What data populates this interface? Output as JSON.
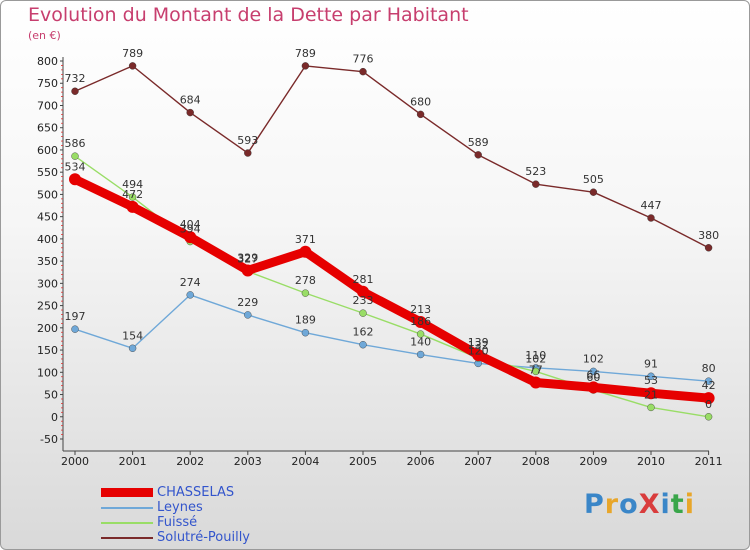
{
  "title": "Evolution du Montant de la Dette par Habitant",
  "unit": "(en €)",
  "logo": {
    "text": "ProXiti",
    "colors": [
      "#3a86c8",
      "#e8a62a",
      "#3a86c8",
      "#d93c3c",
      "#3a86c8",
      "#3aa64a",
      "#e8a62a"
    ]
  },
  "chart_data": {
    "type": "line",
    "title": "Evolution du Montant de la Dette par Habitant",
    "ylabel": "(en €)",
    "xlabel": "",
    "x": [
      "2000",
      "2001",
      "2002",
      "2003",
      "2004",
      "2005",
      "2006",
      "2007",
      "2008",
      "2009",
      "2010",
      "2011"
    ],
    "ylim": [
      -50,
      800
    ],
    "yticks": [
      "-50",
      "0",
      "50",
      "100",
      "150",
      "200",
      "250",
      "300",
      "350",
      "400",
      "450",
      "500",
      "550",
      "600",
      "650",
      "700",
      "750",
      "800"
    ],
    "grid": false,
    "legend": "bottom-left",
    "series": [
      {
        "name": "CHASSELAS",
        "color": "#e60000",
        "width": 9,
        "marker": 6,
        "values": [
          534,
          472,
          404,
          329,
          371,
          281,
          213,
          139,
          77,
          66,
          53,
          42
        ],
        "labels": [
          "534",
          "472",
          "404",
          "329",
          "371",
          "281",
          "213",
          "139",
          "77",
          "66",
          "53",
          "42"
        ]
      },
      {
        "name": "Leynes",
        "color": "#6fa8d8",
        "width": 1.4,
        "marker": 3.5,
        "values": [
          197,
          154,
          274,
          229,
          189,
          162,
          140,
          120,
          110,
          102,
          91,
          80
        ],
        "labels": [
          "197",
          "154",
          "274",
          "229",
          "189",
          "162",
          "140",
          "120",
          "110",
          "102",
          "91",
          "80"
        ]
      },
      {
        "name": "Fuissé",
        "color": "#99dd66",
        "width": 1.4,
        "marker": 3.5,
        "values": [
          586,
          494,
          394,
          327,
          278,
          233,
          186,
          132,
          102,
          60,
          21,
          0
        ],
        "labels": [
          "586",
          "494",
          "394",
          "327",
          "278",
          "233",
          "186",
          "132",
          "102",
          "60",
          "21",
          "0"
        ]
      },
      {
        "name": "Solutré-Pouilly",
        "color": "#7a2a2a",
        "width": 1.4,
        "marker": 3.5,
        "values": [
          732,
          789,
          684,
          593,
          789,
          776,
          680,
          589,
          523,
          505,
          447,
          380
        ],
        "labels": [
          "732",
          "789",
          "684",
          "593",
          "789",
          "776",
          "680",
          "589",
          "523",
          "505",
          "447",
          "380"
        ]
      }
    ]
  }
}
